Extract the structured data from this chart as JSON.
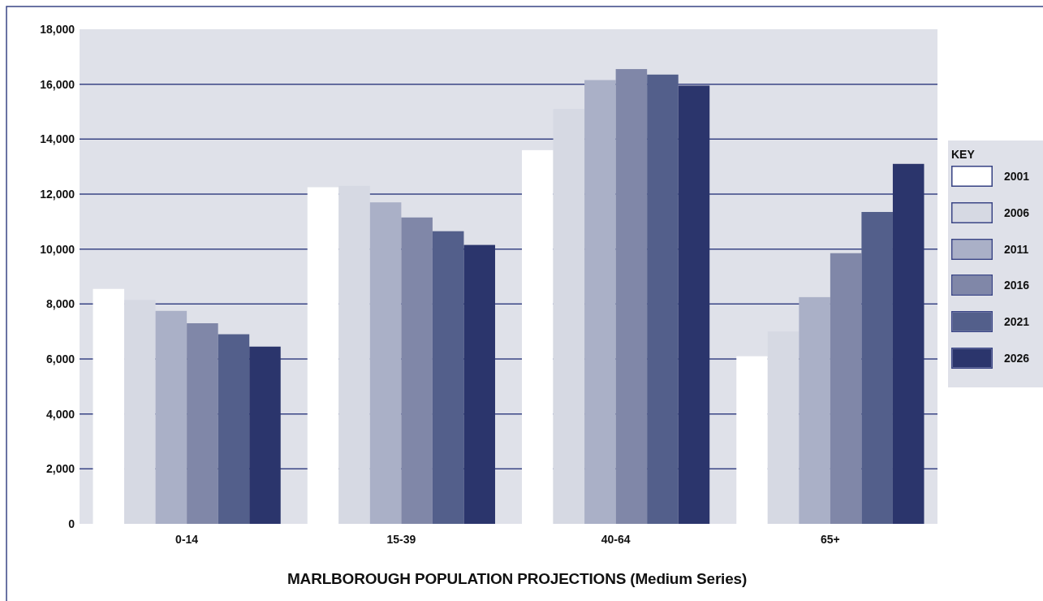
{
  "chart_data": {
    "type": "bar",
    "title": "MARLBOROUGH POPULATION PROJECTIONS (Medium Series)",
    "categories": [
      "0-14",
      "15-39",
      "40-64",
      "65+"
    ],
    "series": [
      {
        "name": "2001",
        "color": "#ffffff",
        "values": [
          8550,
          12250,
          13600,
          6100
        ]
      },
      {
        "name": "2006",
        "color": "#d6d9e3",
        "values": [
          8150,
          12300,
          15100,
          7000
        ]
      },
      {
        "name": "2011",
        "color": "#aab0c7",
        "values": [
          7750,
          11700,
          16150,
          8250
        ]
      },
      {
        "name": "2016",
        "color": "#8087a8",
        "values": [
          7300,
          11150,
          16550,
          9850
        ]
      },
      {
        "name": "2021",
        "color": "#535f8b",
        "values": [
          6900,
          10650,
          16350,
          11350
        ]
      },
      {
        "name": "2026",
        "color": "#2b356c",
        "values": [
          6450,
          10150,
          15950,
          13100
        ]
      }
    ],
    "ylim": [
      0,
      18000
    ],
    "yticks": [
      0,
      {
        "value": 2000,
        "label": "2,000"
      },
      {
        "value": 4000,
        "label": "4,000"
      },
      {
        "value": 6000,
        "label": "6,000"
      },
      {
        "value": 8000,
        "label": "8,000"
      },
      {
        "value": 10000,
        "label": "10,000"
      },
      {
        "value": 12000,
        "label": "12,000"
      },
      {
        "value": 14000,
        "label": "14,000"
      },
      {
        "value": 16000,
        "label": "16,000"
      },
      {
        "value": 18000,
        "label": "18,000"
      }
    ],
    "grid": "y",
    "legend": "right",
    "legend_title": "KEY"
  }
}
